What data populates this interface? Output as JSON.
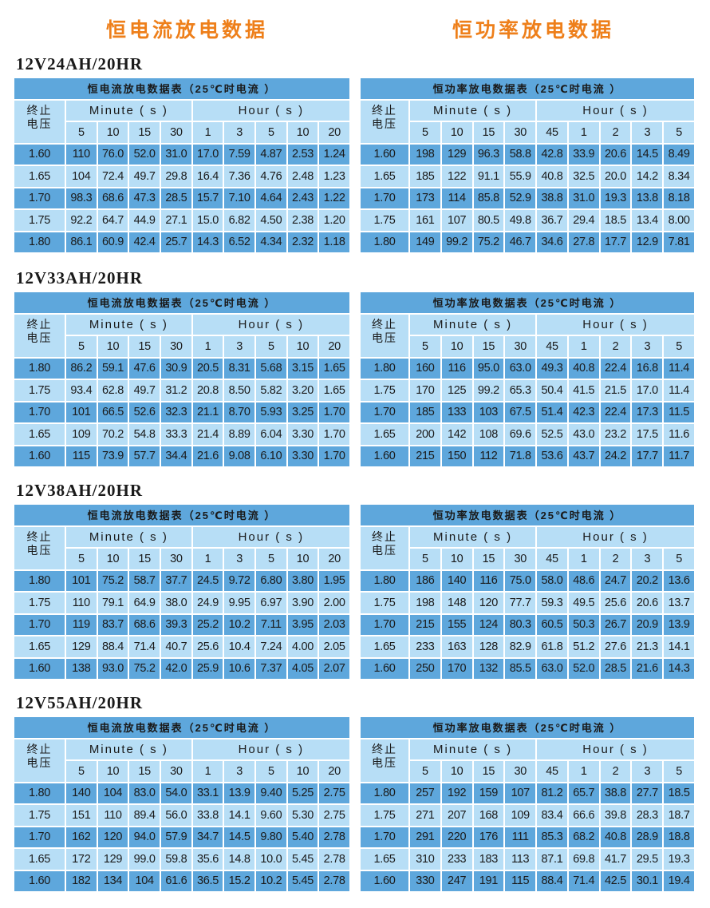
{
  "headings": {
    "left": "恒电流放电数据",
    "right": "恒功率放电数据"
  },
  "colors": {
    "title": "#ee7f1a",
    "dark_row": "#5ea7dc",
    "light_row": "#b7def6"
  },
  "corner_label": [
    "终止",
    "电压"
  ],
  "minute_label": "Minute ( s )",
  "hour_label": "Hour ( s )",
  "cc_title": "恒电流放电数据表（25℃时电流 ）",
  "cp_title": "恒功率放电数据表（25℃时电流 ）",
  "cc_columns": {
    "minute": [
      "5",
      "10",
      "15",
      "30"
    ],
    "hour": [
      "1",
      "3",
      "5",
      "10",
      "20"
    ]
  },
  "cp_columns": {
    "minute": [
      "5",
      "10",
      "15",
      "30"
    ],
    "hour": [
      "45",
      "1",
      "2",
      "3",
      "5"
    ]
  },
  "blocks": [
    {
      "model": "12V24AH/20HR",
      "cc_rows": [
        [
          "1.60",
          "110",
          "76.0",
          "52.0",
          "31.0",
          "17.0",
          "7.59",
          "4.87",
          "2.53",
          "1.24"
        ],
        [
          "1.65",
          "104",
          "72.4",
          "49.7",
          "29.8",
          "16.4",
          "7.36",
          "4.76",
          "2.48",
          "1.23"
        ],
        [
          "1.70",
          "98.3",
          "68.6",
          "47.3",
          "28.5",
          "15.7",
          "7.10",
          "4.64",
          "2.43",
          "1.22"
        ],
        [
          "1.75",
          "92.2",
          "64.7",
          "44.9",
          "27.1",
          "15.0",
          "6.82",
          "4.50",
          "2.38",
          "1.20"
        ],
        [
          "1.80",
          "86.1",
          "60.9",
          "42.4",
          "25.7",
          "14.3",
          "6.52",
          "4.34",
          "2.32",
          "1.18"
        ]
      ],
      "cp_rows": [
        [
          "1.60",
          "198",
          "129",
          "96.3",
          "58.8",
          "42.8",
          "33.9",
          "20.6",
          "14.5",
          "8.49"
        ],
        [
          "1.65",
          "185",
          "122",
          "91.1",
          "55.9",
          "40.8",
          "32.5",
          "20.0",
          "14.2",
          "8.34"
        ],
        [
          "1.70",
          "173",
          "114",
          "85.8",
          "52.9",
          "38.8",
          "31.0",
          "19.3",
          "13.8",
          "8.18"
        ],
        [
          "1.75",
          "161",
          "107",
          "80.5",
          "49.8",
          "36.7",
          "29.4",
          "18.5",
          "13.4",
          "8.00"
        ],
        [
          "1.80",
          "149",
          "99.2",
          "75.2",
          "46.7",
          "34.6",
          "27.8",
          "17.7",
          "12.9",
          "7.81"
        ]
      ]
    },
    {
      "model": "12V33AH/20HR",
      "cc_rows": [
        [
          "1.80",
          "86.2",
          "59.1",
          "47.6",
          "30.9",
          "20.5",
          "8.31",
          "5.68",
          "3.15",
          "1.65"
        ],
        [
          "1.75",
          "93.4",
          "62.8",
          "49.7",
          "31.2",
          "20.8",
          "8.50",
          "5.82",
          "3.20",
          "1.65"
        ],
        [
          "1.70",
          "101",
          "66.5",
          "52.6",
          "32.3",
          "21.1",
          "8.70",
          "5.93",
          "3.25",
          "1.70"
        ],
        [
          "1.65",
          "109",
          "70.2",
          "54.8",
          "33.3",
          "21.4",
          "8.89",
          "6.04",
          "3.30",
          "1.70"
        ],
        [
          "1.60",
          "115",
          "73.9",
          "57.7",
          "34.4",
          "21.6",
          "9.08",
          "6.10",
          "3.30",
          "1.70"
        ]
      ],
      "cp_rows": [
        [
          "1.80",
          "160",
          "116",
          "95.0",
          "63.0",
          "49.3",
          "40.8",
          "22.4",
          "16.8",
          "11.4"
        ],
        [
          "1.75",
          "170",
          "125",
          "99.2",
          "65.3",
          "50.4",
          "41.5",
          "21.5",
          "17.0",
          "11.4"
        ],
        [
          "1.70",
          "185",
          "133",
          "103",
          "67.5",
          "51.4",
          "42.3",
          "22.4",
          "17.3",
          "11.5"
        ],
        [
          "1.65",
          "200",
          "142",
          "108",
          "69.6",
          "52.5",
          "43.0",
          "23.2",
          "17.5",
          "11.6"
        ],
        [
          "1.60",
          "215",
          "150",
          "112",
          "71.8",
          "53.6",
          "43.7",
          "24.2",
          "17.7",
          "11.7"
        ]
      ]
    },
    {
      "model": "12V38AH/20HR",
      "cc_rows": [
        [
          "1.80",
          "101",
          "75.2",
          "58.7",
          "37.7",
          "24.5",
          "9.72",
          "6.80",
          "3.80",
          "1.95"
        ],
        [
          "1.75",
          "110",
          "79.1",
          "64.9",
          "38.0",
          "24.9",
          "9.95",
          "6.97",
          "3.90",
          "2.00"
        ],
        [
          "1.70",
          "119",
          "83.7",
          "68.6",
          "39.3",
          "25.2",
          "10.2",
          "7.11",
          "3.95",
          "2.03"
        ],
        [
          "1.65",
          "129",
          "88.4",
          "71.4",
          "40.7",
          "25.6",
          "10.4",
          "7.24",
          "4.00",
          "2.05"
        ],
        [
          "1.60",
          "138",
          "93.0",
          "75.2",
          "42.0",
          "25.9",
          "10.6",
          "7.37",
          "4.05",
          "2.07"
        ]
      ],
      "cp_rows": [
        [
          "1.80",
          "186",
          "140",
          "116",
          "75.0",
          "58.0",
          "48.6",
          "24.7",
          "20.2",
          "13.6"
        ],
        [
          "1.75",
          "198",
          "148",
          "120",
          "77.7",
          "59.3",
          "49.5",
          "25.6",
          "20.6",
          "13.7"
        ],
        [
          "1.70",
          "215",
          "155",
          "124",
          "80.3",
          "60.5",
          "50.3",
          "26.7",
          "20.9",
          "13.9"
        ],
        [
          "1.65",
          "233",
          "163",
          "128",
          "82.9",
          "61.8",
          "51.2",
          "27.6",
          "21.3",
          "14.1"
        ],
        [
          "1.60",
          "250",
          "170",
          "132",
          "85.5",
          "63.0",
          "52.0",
          "28.5",
          "21.6",
          "14.3"
        ]
      ]
    },
    {
      "model": "12V55AH/20HR",
      "cc_rows": [
        [
          "1.80",
          "140",
          "104",
          "83.0",
          "54.0",
          "33.1",
          "13.9",
          "9.40",
          "5.25",
          "2.75"
        ],
        [
          "1.75",
          "151",
          "110",
          "89.4",
          "56.0",
          "33.8",
          "14.1",
          "9.60",
          "5.30",
          "2.75"
        ],
        [
          "1.70",
          "162",
          "120",
          "94.0",
          "57.9",
          "34.7",
          "14.5",
          "9.80",
          "5.40",
          "2.78"
        ],
        [
          "1.65",
          "172",
          "129",
          "99.0",
          "59.8",
          "35.6",
          "14.8",
          "10.0",
          "5.45",
          "2.78"
        ],
        [
          "1.60",
          "182",
          "134",
          "104",
          "61.6",
          "36.5",
          "15.2",
          "10.2",
          "5.45",
          "2.78"
        ]
      ],
      "cp_rows": [
        [
          "1.80",
          "257",
          "192",
          "159",
          "107",
          "81.2",
          "65.7",
          "38.8",
          "27.7",
          "18.5"
        ],
        [
          "1.75",
          "271",
          "207",
          "168",
          "109",
          "83.4",
          "66.6",
          "39.8",
          "28.3",
          "18.7"
        ],
        [
          "1.70",
          "291",
          "220",
          "176",
          "111",
          "85.3",
          "68.2",
          "40.8",
          "28.9",
          "18.8"
        ],
        [
          "1.65",
          "310",
          "233",
          "183",
          "113",
          "87.1",
          "69.8",
          "41.7",
          "29.5",
          "19.3"
        ],
        [
          "1.60",
          "330",
          "247",
          "191",
          "115",
          "88.4",
          "71.4",
          "42.5",
          "30.1",
          "19.4"
        ]
      ]
    }
  ]
}
